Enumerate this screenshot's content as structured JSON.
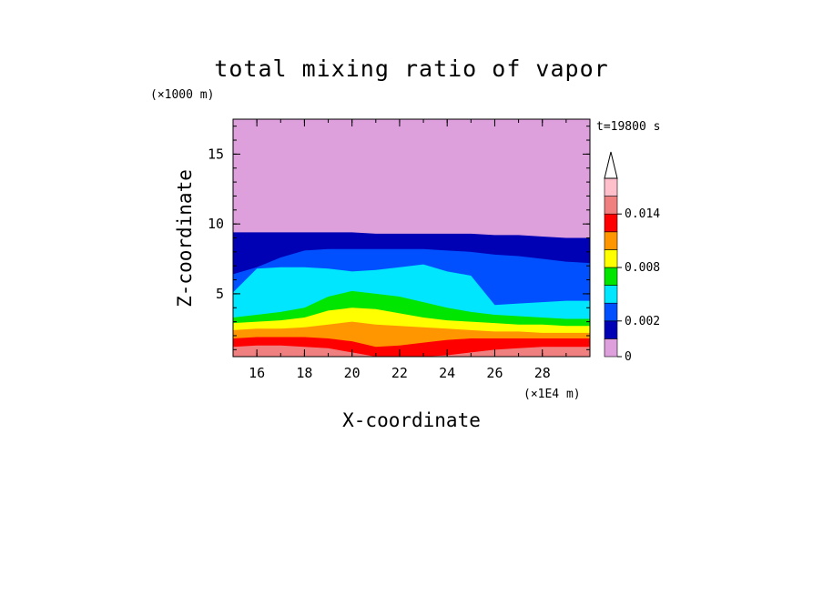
{
  "chart_data": {
    "type": "heatmap",
    "title": "total mixing ratio of vapor",
    "xlabel": "X-coordinate",
    "ylabel": "Z-coordinate",
    "x_unit": "(×1E4 m)",
    "y_unit": "(×1000 m)",
    "time_label": "t=19800 s",
    "xlim": [
      15,
      30
    ],
    "ylim": [
      0.5,
      17.5
    ],
    "x_ticks": [
      16,
      18,
      20,
      22,
      24,
      26,
      28
    ],
    "y_ticks": [
      5,
      10,
      15
    ],
    "x_tick_labels": [
      "16",
      "18",
      "20",
      "22",
      "24",
      "26",
      "28"
    ],
    "y_tick_labels": [
      "5",
      "10",
      "15"
    ],
    "colorbar": {
      "levels": [
        0,
        0.001,
        0.002,
        0.004,
        0.006,
        0.008,
        0.01,
        0.012,
        0.014,
        0.016
      ],
      "colors": [
        "#dda0dd",
        "#0000b4",
        "#0050ff",
        "#00e6ff",
        "#00e600",
        "#ffff00",
        "#ff9600",
        "#ff0000",
        "#f08080",
        "#ffc0cb"
      ],
      "tick_values": [
        0,
        0.002,
        0.008,
        0.014
      ],
      "tick_labels": [
        "0",
        "0.002",
        "0.008",
        "0.014"
      ],
      "extend": "max"
    },
    "profile": {
      "x": [
        15,
        16,
        17,
        18,
        19,
        20,
        21,
        22,
        23,
        24,
        25,
        26,
        27,
        28,
        29,
        30
      ],
      "contours": [
        {
          "level": 0.001,
          "z": [
            9.4,
            9.4,
            9.4,
            9.4,
            9.4,
            9.4,
            9.3,
            9.3,
            9.3,
            9.3,
            9.3,
            9.2,
            9.2,
            9.1,
            9.0,
            9.0
          ]
        },
        {
          "level": 0.002,
          "z": [
            6.4,
            6.9,
            7.6,
            8.1,
            8.2,
            8.2,
            8.2,
            8.2,
            8.2,
            8.1,
            8.0,
            7.8,
            7.7,
            7.5,
            7.3,
            7.2
          ]
        },
        {
          "level": 0.004,
          "z": [
            5.1,
            6.8,
            6.9,
            6.9,
            6.8,
            6.6,
            6.7,
            6.9,
            7.1,
            6.6,
            6.3,
            4.2,
            4.3,
            4.4,
            4.5,
            4.5
          ]
        },
        {
          "level": 0.006,
          "z": [
            3.3,
            3.5,
            3.7,
            4.0,
            4.8,
            5.2,
            5.0,
            4.8,
            4.4,
            4.0,
            3.7,
            3.5,
            3.4,
            3.3,
            3.2,
            3.2
          ]
        },
        {
          "level": 0.008,
          "z": [
            2.9,
            3.0,
            3.1,
            3.3,
            3.8,
            4.0,
            3.9,
            3.6,
            3.3,
            3.1,
            3.0,
            2.9,
            2.8,
            2.8,
            2.7,
            2.7
          ]
        },
        {
          "level": 0.01,
          "z": [
            2.4,
            2.5,
            2.5,
            2.6,
            2.8,
            3.0,
            2.8,
            2.7,
            2.6,
            2.5,
            2.4,
            2.3,
            2.3,
            2.2,
            2.2,
            2.2
          ]
        },
        {
          "level": 0.012,
          "z": [
            1.8,
            1.9,
            1.9,
            1.9,
            1.8,
            1.6,
            1.2,
            1.3,
            1.5,
            1.7,
            1.8,
            1.8,
            1.8,
            1.8,
            1.8,
            1.8
          ]
        },
        {
          "level": 0.014,
          "z": [
            1.2,
            1.3,
            1.3,
            1.2,
            1.1,
            0.8,
            0.5,
            0.5,
            0.5,
            0.6,
            0.8,
            1.0,
            1.1,
            1.2,
            1.2,
            1.2
          ]
        }
      ]
    }
  }
}
